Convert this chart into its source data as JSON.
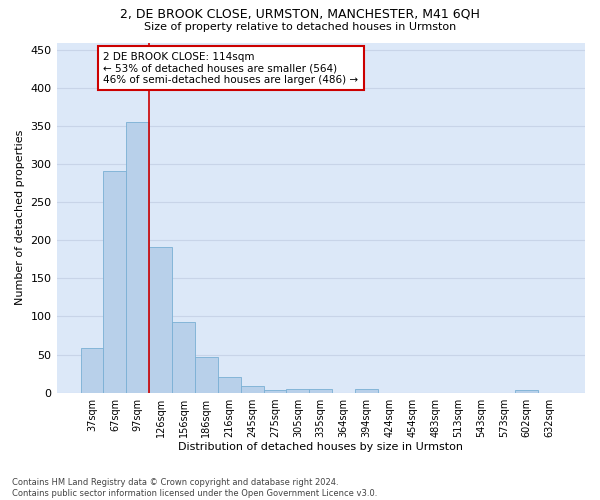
{
  "title_line1": "2, DE BROOK CLOSE, URMSTON, MANCHESTER, M41 6QH",
  "title_line2": "Size of property relative to detached houses in Urmston",
  "xlabel": "Distribution of detached houses by size in Urmston",
  "ylabel": "Number of detached properties",
  "categories": [
    "37sqm",
    "67sqm",
    "97sqm",
    "126sqm",
    "156sqm",
    "186sqm",
    "216sqm",
    "245sqm",
    "275sqm",
    "305sqm",
    "335sqm",
    "364sqm",
    "394sqm",
    "424sqm",
    "454sqm",
    "483sqm",
    "513sqm",
    "543sqm",
    "573sqm",
    "602sqm",
    "632sqm"
  ],
  "values": [
    59,
    291,
    355,
    191,
    93,
    47,
    21,
    9,
    4,
    5,
    5,
    0,
    5,
    0,
    0,
    0,
    0,
    0,
    0,
    4,
    0
  ],
  "bar_color": "#b8d0ea",
  "bar_edgecolor": "#7aafd4",
  "vline_color": "#cc0000",
  "vline_index": 3,
  "annotation_text": "2 DE BROOK CLOSE: 114sqm\n← 53% of detached houses are smaller (564)\n46% of semi-detached houses are larger (486) →",
  "annotation_box_facecolor": "#ffffff",
  "annotation_box_edgecolor": "#cc0000",
  "ylim": [
    0,
    460
  ],
  "yticks": [
    0,
    50,
    100,
    150,
    200,
    250,
    300,
    350,
    400,
    450
  ],
  "footnote": "Contains HM Land Registry data © Crown copyright and database right 2024.\nContains public sector information licensed under the Open Government Licence v3.0.",
  "grid_color": "#c8d4e8",
  "bg_color": "#dce8f8",
  "fig_bg_color": "#ffffff"
}
